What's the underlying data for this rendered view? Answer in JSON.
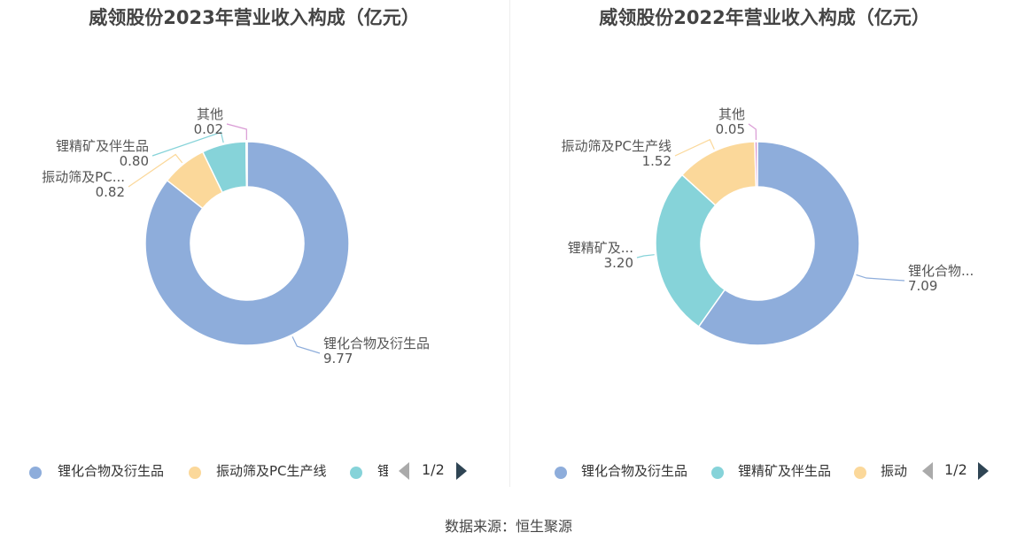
{
  "colors": {
    "lithium_compounds": "#8eaddb",
    "screen_pc": "#fbd89a",
    "lithium_concentrate": "#86d3d9",
    "other": "#d99ad4",
    "pager_active": "#2f4554",
    "pager_inactive": "#aaaaaa"
  },
  "chart_data": [
    {
      "type": "pie",
      "title": "威领股份2023年营业收入构成（亿元）",
      "slices": [
        {
          "name": "锂化合物及衍生品",
          "label": "锂化合物及衍生品",
          "value": 9.77,
          "value_label": "9.77",
          "color": "#8eaddb"
        },
        {
          "name": "振动筛及PC生产线",
          "label": "振动筛及PC...",
          "value": 0.82,
          "value_label": "0.82",
          "color": "#fbd89a"
        },
        {
          "name": "锂精矿及伴生品",
          "label": "锂精矿及伴生品",
          "value": 0.8,
          "value_label": "0.80",
          "color": "#86d3d9"
        },
        {
          "name": "其他",
          "label": "其他",
          "value": 0.02,
          "value_label": "0.02",
          "color": "#d99ad4"
        }
      ],
      "legend": {
        "items": [
          "锂化合物及衍生品",
          "振动筛及PC生产线",
          "锂"
        ],
        "colors": [
          "#8eaddb",
          "#fbd89a",
          "#86d3d9"
        ],
        "page": "1/2",
        "position": "bottom"
      }
    },
    {
      "type": "pie",
      "title": "威领股份2022年营业收入构成（亿元）",
      "slices": [
        {
          "name": "锂化合物及衍生品",
          "label": "锂化合物...",
          "value": 7.09,
          "value_label": "7.09",
          "color": "#8eaddb"
        },
        {
          "name": "锂精矿及伴生品",
          "label": "锂精矿及...",
          "value": 3.2,
          "value_label": "3.20",
          "color": "#86d3d9"
        },
        {
          "name": "振动筛及PC生产线",
          "label": "振动筛及PC生产线",
          "value": 1.52,
          "value_label": "1.52",
          "color": "#fbd89a"
        },
        {
          "name": "其他",
          "label": "其他",
          "value": 0.05,
          "value_label": "0.05",
          "color": "#d99ad4"
        }
      ],
      "legend": {
        "items": [
          "锂化合物及衍生品",
          "锂精矿及伴生品",
          "振动"
        ],
        "colors": [
          "#8eaddb",
          "#86d3d9",
          "#fbd89a"
        ],
        "page": "1/2",
        "position": "bottom"
      }
    }
  ],
  "source": "数据来源：恒生聚源"
}
